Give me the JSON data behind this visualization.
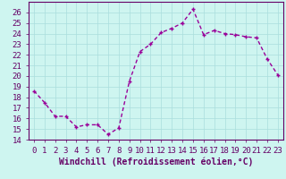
{
  "x": [
    0,
    1,
    2,
    3,
    4,
    5,
    6,
    7,
    8,
    9,
    10,
    11,
    12,
    13,
    14,
    15,
    16,
    17,
    18,
    19,
    20,
    21,
    22,
    23
  ],
  "y": [
    18.6,
    17.5,
    16.2,
    16.2,
    15.2,
    15.4,
    15.4,
    14.5,
    15.1,
    19.5,
    22.3,
    23.0,
    24.1,
    24.5,
    25.0,
    26.3,
    23.9,
    24.3,
    24.0,
    23.9,
    23.7,
    23.6,
    21.6,
    20.1
  ],
  "line_color": "#990099",
  "marker": "+",
  "bg_color": "#cef5f0",
  "grid_color": "#aadddd",
  "xlabel": "Windchill (Refroidissement éolien,°C)",
  "xlabel_color": "#660066",
  "tick_color": "#660066",
  "ylim": [
    14,
    27
  ],
  "xlim": [
    -0.5,
    23.5
  ],
  "yticks": [
    14,
    15,
    16,
    17,
    18,
    19,
    20,
    21,
    22,
    23,
    24,
    25,
    26
  ],
  "xticks": [
    0,
    1,
    2,
    3,
    4,
    5,
    6,
    7,
    8,
    9,
    10,
    11,
    12,
    13,
    14,
    15,
    16,
    17,
    18,
    19,
    20,
    21,
    22,
    23
  ],
  "spine_color": "#660066",
  "marker_size": 3,
  "line_width": 1.0,
  "font_size": 6.5
}
